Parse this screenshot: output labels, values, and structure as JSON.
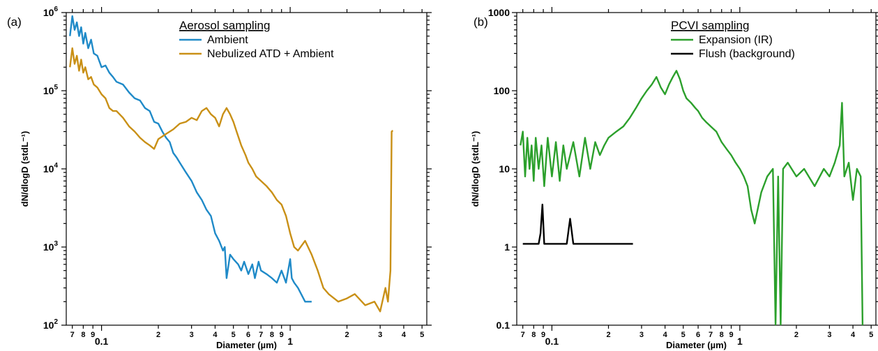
{
  "chart_data": [
    {
      "panel_label": "(a)",
      "type": "line",
      "xlabel": "Diameter (µm)",
      "ylabel": "dN/dlogD (stdL⁻¹)",
      "x_scale": "log",
      "y_scale": "log",
      "xlim": [
        0.065,
        5.3
      ],
      "ylim": [
        100,
        1000000
      ],
      "x_major_ticks": [
        {
          "value": 0.1,
          "label": "0.1"
        },
        {
          "value": 1,
          "label": "1"
        }
      ],
      "x_minor_ticks": [
        {
          "value": 0.07,
          "label": "7"
        },
        {
          "value": 0.08,
          "label": "8"
        },
        {
          "value": 0.09,
          "label": "9"
        },
        {
          "value": 0.2,
          "label": "2"
        },
        {
          "value": 0.3,
          "label": "3"
        },
        {
          "value": 0.4,
          "label": "4"
        },
        {
          "value": 0.5,
          "label": "5"
        },
        {
          "value": 0.6,
          "label": "6"
        },
        {
          "value": 0.7,
          "label": "7"
        },
        {
          "value": 0.8,
          "label": "8"
        },
        {
          "value": 0.9,
          "label": "9"
        },
        {
          "value": 2,
          "label": "2"
        },
        {
          "value": 3,
          "label": "3"
        },
        {
          "value": 4,
          "label": "4"
        },
        {
          "value": 5,
          "label": "5"
        }
      ],
      "y_ticks": [
        {
          "value": 100,
          "base": "10",
          "exp": "2"
        },
        {
          "value": 1000,
          "base": "10",
          "exp": "3"
        },
        {
          "value": 10000,
          "base": "10",
          "exp": "4"
        },
        {
          "value": 100000,
          "base": "10",
          "exp": "5"
        },
        {
          "value": 1000000,
          "base": "10",
          "exp": "6"
        }
      ],
      "legend_title": "Aerosol sampling",
      "legend_placement": "top-right",
      "series": [
        {
          "name": "Ambient",
          "color": "#1f8ac8",
          "x": [
            0.068,
            0.07,
            0.072,
            0.074,
            0.076,
            0.078,
            0.08,
            0.082,
            0.085,
            0.088,
            0.091,
            0.095,
            0.1,
            0.105,
            0.11,
            0.115,
            0.12,
            0.13,
            0.14,
            0.15,
            0.16,
            0.17,
            0.18,
            0.19,
            0.2,
            0.21,
            0.22,
            0.23,
            0.24,
            0.25,
            0.26,
            0.28,
            0.3,
            0.32,
            0.34,
            0.36,
            0.38,
            0.4,
            0.42,
            0.44,
            0.45,
            0.46,
            0.48,
            0.5,
            0.53,
            0.55,
            0.57,
            0.6,
            0.63,
            0.65,
            0.68,
            0.7,
            0.75,
            0.8,
            0.85,
            0.9,
            0.95,
            1.0,
            1.02,
            1.05,
            1.1,
            1.2,
            1.3
          ],
          "y": [
            500000,
            900000,
            600000,
            750000,
            500000,
            650000,
            400000,
            550000,
            350000,
            450000,
            300000,
            280000,
            200000,
            210000,
            170000,
            150000,
            130000,
            120000,
            95000,
            80000,
            75000,
            60000,
            55000,
            40000,
            38000,
            30000,
            25000,
            22000,
            16000,
            14000,
            12000,
            9000,
            7000,
            5000,
            4000,
            3000,
            2500,
            1500,
            1200,
            900,
            1000,
            400,
            800,
            700,
            600,
            500,
            650,
            450,
            600,
            400,
            650,
            500,
            450,
            400,
            350,
            500,
            350,
            700,
            400,
            350,
            300,
            200,
            200
          ]
        },
        {
          "name": "Nebulized ATD + Ambient",
          "color": "#c99016",
          "x": [
            0.068,
            0.07,
            0.072,
            0.074,
            0.076,
            0.078,
            0.08,
            0.082,
            0.085,
            0.088,
            0.091,
            0.095,
            0.1,
            0.105,
            0.11,
            0.115,
            0.12,
            0.13,
            0.14,
            0.15,
            0.16,
            0.17,
            0.18,
            0.19,
            0.2,
            0.22,
            0.24,
            0.26,
            0.28,
            0.3,
            0.32,
            0.34,
            0.36,
            0.38,
            0.4,
            0.42,
            0.44,
            0.46,
            0.48,
            0.5,
            0.52,
            0.55,
            0.58,
            0.6,
            0.63,
            0.66,
            0.7,
            0.75,
            0.8,
            0.85,
            0.9,
            0.95,
            1.0,
            1.05,
            1.1,
            1.2,
            1.3,
            1.4,
            1.5,
            1.6,
            1.8,
            2.0,
            2.2,
            2.5,
            2.8,
            3.0,
            3.2,
            3.3,
            3.4,
            3.45,
            3.5
          ],
          "y": [
            200000,
            350000,
            220000,
            280000,
            180000,
            250000,
            170000,
            200000,
            140000,
            150000,
            120000,
            110000,
            90000,
            80000,
            60000,
            55000,
            55000,
            45000,
            35000,
            30000,
            25000,
            22000,
            20000,
            18000,
            24000,
            28000,
            32000,
            38000,
            40000,
            45000,
            42000,
            55000,
            60000,
            50000,
            45000,
            35000,
            50000,
            60000,
            50000,
            40000,
            30000,
            20000,
            15000,
            12000,
            10000,
            8000,
            7000,
            6000,
            5000,
            4000,
            3500,
            2500,
            1500,
            1000,
            900,
            1200,
            800,
            500,
            300,
            250,
            200,
            220,
            250,
            180,
            200,
            150,
            300,
            200,
            500,
            30000,
            31000
          ]
        }
      ]
    },
    {
      "panel_label": "(b)",
      "type": "line",
      "xlabel": "Diameter (µm)",
      "ylabel": "dN/dlogD (stdL⁻¹)",
      "x_scale": "log",
      "y_scale": "log",
      "xlim": [
        0.065,
        5.3
      ],
      "ylim": [
        0.1,
        1000
      ],
      "x_major_ticks": [
        {
          "value": 0.1,
          "label": "0.1"
        },
        {
          "value": 1,
          "label": "1"
        }
      ],
      "x_minor_ticks": [
        {
          "value": 0.07,
          "label": "7"
        },
        {
          "value": 0.08,
          "label": "8"
        },
        {
          "value": 0.09,
          "label": "9"
        },
        {
          "value": 0.2,
          "label": "2"
        },
        {
          "value": 0.3,
          "label": "3"
        },
        {
          "value": 0.4,
          "label": "4"
        },
        {
          "value": 0.5,
          "label": "5"
        },
        {
          "value": 0.6,
          "label": "6"
        },
        {
          "value": 0.7,
          "label": "7"
        },
        {
          "value": 0.8,
          "label": "8"
        },
        {
          "value": 0.9,
          "label": "9"
        },
        {
          "value": 2,
          "label": "2"
        },
        {
          "value": 3,
          "label": "3"
        },
        {
          "value": 4,
          "label": "4"
        },
        {
          "value": 5,
          "label": "5"
        }
      ],
      "y_ticks": [
        {
          "value": 0.1,
          "label": "0.1"
        },
        {
          "value": 1,
          "label": "1"
        },
        {
          "value": 10,
          "label": "10"
        },
        {
          "value": 100,
          "label": "100"
        },
        {
          "value": 1000,
          "label": "1000"
        }
      ],
      "legend_title": "PCVI sampling",
      "legend_placement": "top-right",
      "series": [
        {
          "name": "Expansion (IR)",
          "color": "#2ca02c",
          "x": [
            0.068,
            0.07,
            0.072,
            0.074,
            0.076,
            0.078,
            0.08,
            0.082,
            0.085,
            0.088,
            0.091,
            0.095,
            0.1,
            0.105,
            0.11,
            0.115,
            0.12,
            0.13,
            0.14,
            0.15,
            0.16,
            0.17,
            0.18,
            0.19,
            0.2,
            0.22,
            0.24,
            0.26,
            0.28,
            0.3,
            0.32,
            0.34,
            0.36,
            0.38,
            0.4,
            0.42,
            0.44,
            0.46,
            0.48,
            0.5,
            0.52,
            0.55,
            0.58,
            0.6,
            0.63,
            0.66,
            0.7,
            0.75,
            0.8,
            0.85,
            0.9,
            0.95,
            1.0,
            1.05,
            1.1,
            1.15,
            1.2,
            1.3,
            1.4,
            1.5,
            1.55,
            1.6,
            1.65,
            1.7,
            1.8,
            2.0,
            2.2,
            2.5,
            2.8,
            3.0,
            3.2,
            3.4,
            3.5,
            3.6,
            3.8,
            4.0,
            4.2,
            4.4,
            4.5
          ],
          "y": [
            20,
            30,
            8,
            25,
            10,
            20,
            7,
            25,
            10,
            20,
            6,
            25,
            8,
            22,
            7,
            20,
            10,
            22,
            8,
            25,
            10,
            22,
            15,
            20,
            25,
            30,
            35,
            45,
            60,
            80,
            100,
            120,
            150,
            110,
            90,
            120,
            150,
            180,
            140,
            100,
            80,
            70,
            60,
            55,
            45,
            40,
            35,
            30,
            22,
            18,
            15,
            12,
            10,
            8,
            6,
            3,
            2,
            5,
            8,
            10,
            0.1,
            8,
            0.1,
            10,
            12,
            8,
            10,
            6,
            10,
            8,
            12,
            20,
            70,
            8,
            12,
            4,
            10,
            8,
            0.1
          ]
        },
        {
          "name": "Flush (background)",
          "color": "#000000",
          "x": [
            0.07,
            0.08,
            0.085,
            0.087,
            0.089,
            0.091,
            0.093,
            0.1,
            0.11,
            0.12,
            0.125,
            0.13,
            0.14,
            0.15,
            0.27
          ],
          "y": [
            1.1,
            1.1,
            1.1,
            1.5,
            3.5,
            1.1,
            1.1,
            1.1,
            1.1,
            1.1,
            2.3,
            1.1,
            1.1,
            1.1,
            1.1
          ]
        }
      ]
    }
  ]
}
